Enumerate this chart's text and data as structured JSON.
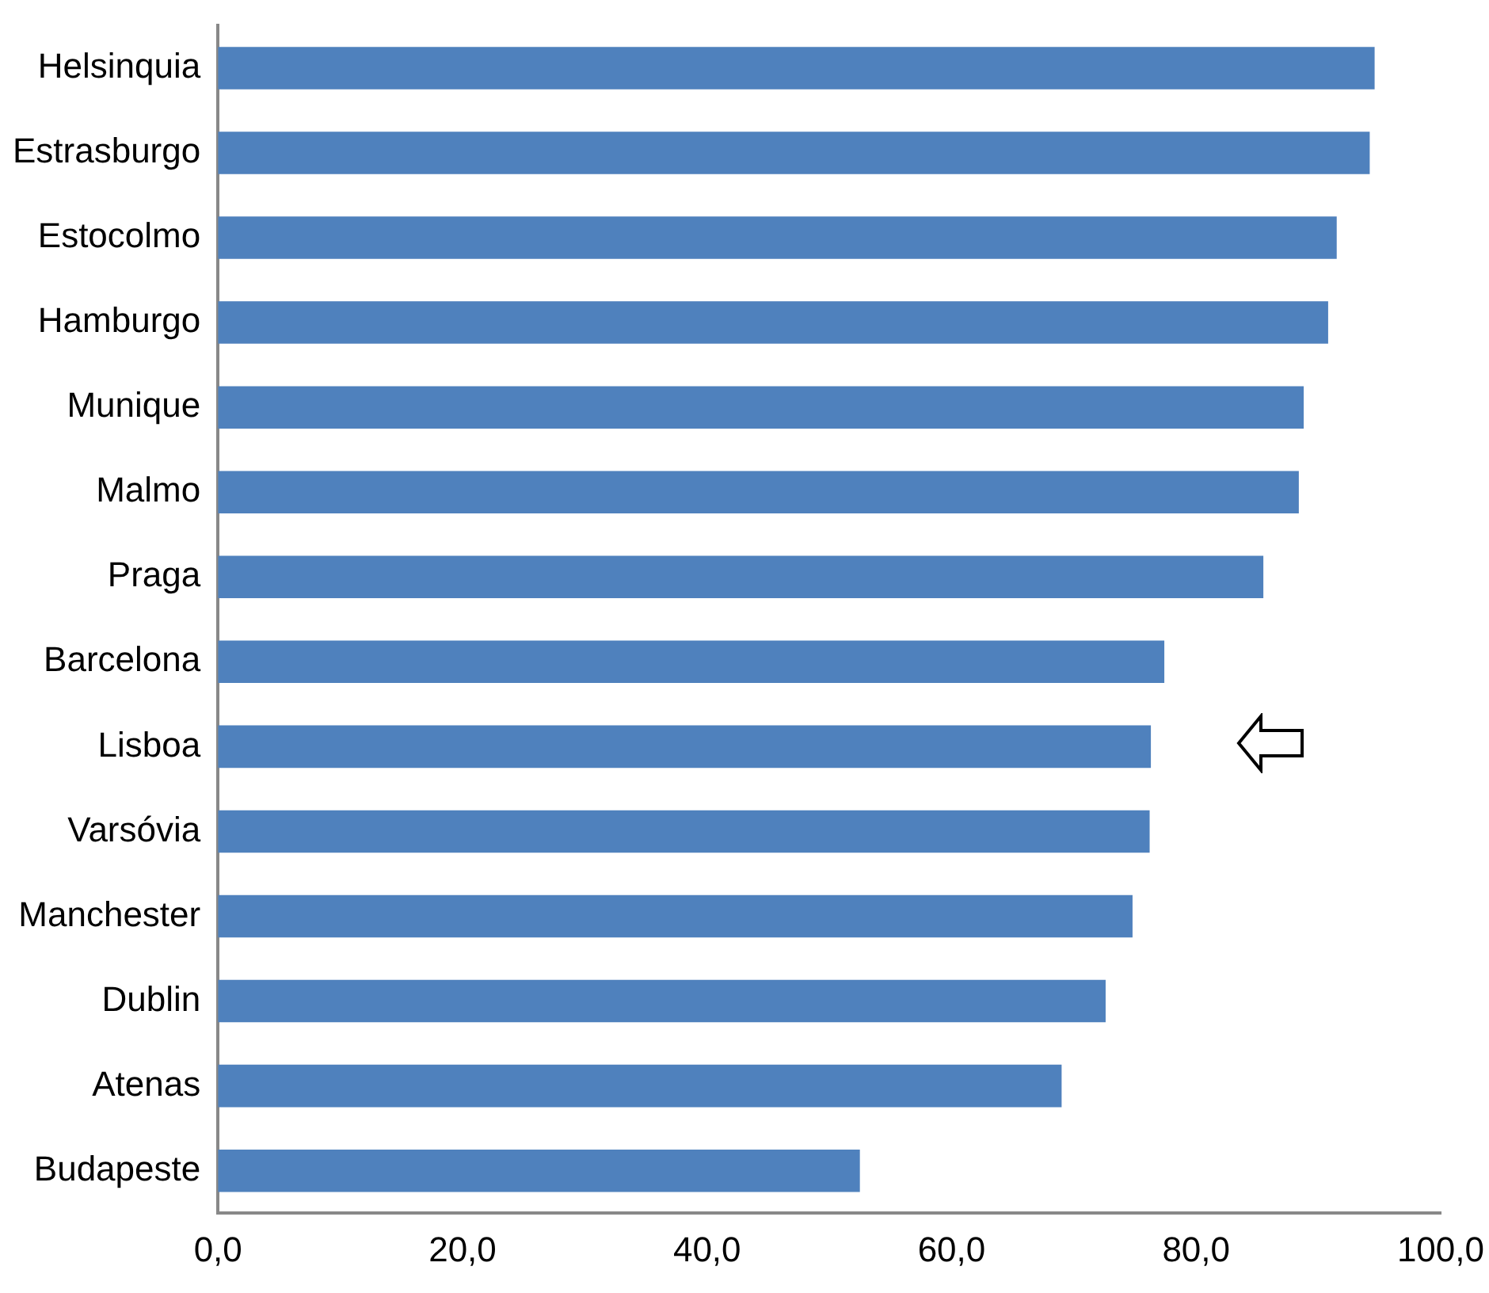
{
  "chart_data": {
    "type": "bar",
    "orientation": "horizontal",
    "categories": [
      "Helsinquia",
      "Estrasburgo",
      "Estocolmo",
      "Hamburgo",
      "Munique",
      "Malmo",
      "Praga",
      "Barcelona",
      "Lisboa",
      "Varsóvia",
      "Manchester",
      "Dublin",
      "Atenas",
      "Budapeste"
    ],
    "values": [
      94.6,
      94.2,
      91.5,
      90.8,
      88.8,
      88.4,
      85.5,
      77.4,
      76.3,
      76.2,
      74.8,
      72.6,
      69.0,
      52.5
    ],
    "color": "#4f81bd",
    "xlim": [
      0,
      100
    ],
    "xticks": [
      {
        "value": 0,
        "label": "0,0"
      },
      {
        "value": 20,
        "label": "20,0"
      },
      {
        "value": 40,
        "label": "40,0"
      },
      {
        "value": 60,
        "label": "60,0"
      },
      {
        "value": 80,
        "label": "80,0"
      },
      {
        "value": 100,
        "label": "100,0"
      }
    ],
    "grid": false,
    "legend": false
  }
}
